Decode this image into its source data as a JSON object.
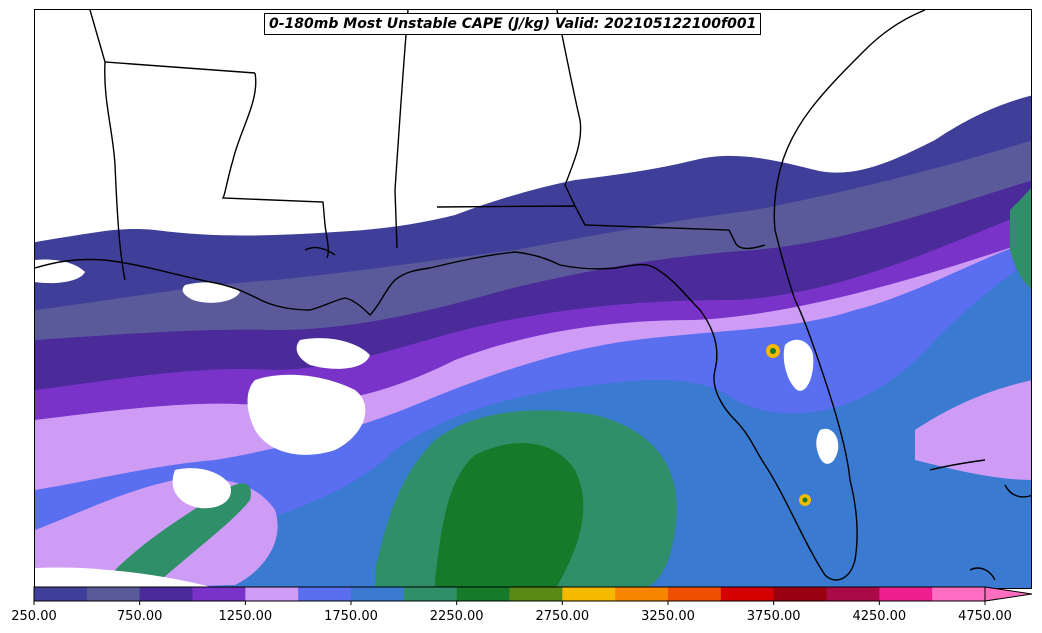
{
  "map": {
    "title": "0-180mb Most Unstable CAPE (J/kg) Valid: 202105122100f001"
  },
  "colorbar": {
    "colors": [
      "#3f3f9a",
      "#5a5a9a",
      "#4b2a9a",
      "#7a33c9",
      "#cf9cf5",
      "#5a6ef0",
      "#3a7ad0",
      "#2f8f69",
      "#167a2a",
      "#5a8a15",
      "#f5b900",
      "#f88500",
      "#ef4f00",
      "#d40000",
      "#9a0010",
      "#aa0a45",
      "#ee1f8e",
      "#ff6ec0"
    ],
    "ticks": [
      "250.00",
      "750.00",
      "1250.00",
      "1750.00",
      "2250.00",
      "2750.00",
      "3250.00",
      "3750.00",
      "4250.00",
      "4750.00"
    ],
    "extend": "max"
  }
}
